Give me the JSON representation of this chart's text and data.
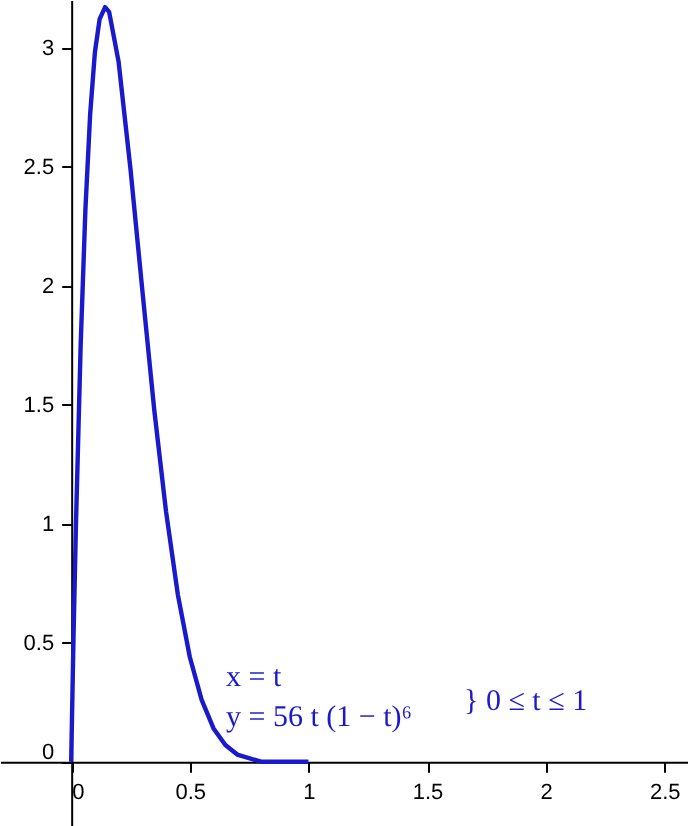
{
  "chart_data": {
    "type": "line",
    "x": [
      0,
      0.01,
      0.02,
      0.04,
      0.06,
      0.08,
      0.1,
      0.12,
      0.143,
      0.16,
      0.2,
      0.25,
      0.3,
      0.35,
      0.4,
      0.45,
      0.5,
      0.55,
      0.6,
      0.65,
      0.7,
      0.8,
      0.9,
      1
    ],
    "series": [
      {
        "color": "#1a1acc",
        "values": [
          0,
          0.53,
          0.99,
          1.75,
          2.32,
          2.72,
          2.98,
          3.12,
          3.17,
          3.15,
          2.94,
          2.49,
          1.98,
          1.48,
          1.05,
          0.7,
          0.44,
          0.26,
          0.14,
          0.07,
          0.03,
          0,
          0,
          0
        ]
      }
    ],
    "xlim": [
      -0.3,
      2.6
    ],
    "ylim": [
      -0.27,
      3.2
    ],
    "xticks": [
      0,
      0.5,
      1,
      1.5,
      2,
      2.5
    ],
    "yticks": [
      0,
      0.5,
      1,
      1.5,
      2,
      2.5,
      3
    ],
    "annotations": [
      "x = t",
      "y = 56 t (1 − t)⁶",
      "} 0 ≤ t ≤ 1"
    ]
  }
}
